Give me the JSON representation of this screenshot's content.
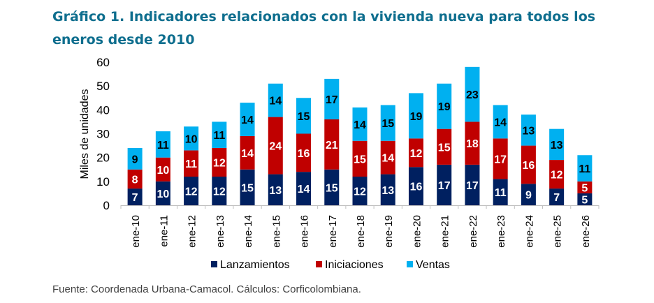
{
  "title": "Gráfico 1. Indicadores relacionados con la vivienda nueva para todos los eneros desde 2010",
  "source": "Fuente: Coordenada Urbana-Camacol. Cálculos: Corficolombiana.",
  "chart_data": {
    "type": "bar",
    "stacked": true,
    "title": "Gráfico 1. Indicadores relacionados con la vivienda nueva para todos los eneros desde 2010",
    "xlabel": "",
    "ylabel": "Miles de unidades",
    "ylim": [
      0,
      60
    ],
    "yticks": [
      0,
      10,
      20,
      30,
      40,
      50,
      60
    ],
    "grid": false,
    "legend": "bottom",
    "categories": [
      "ene-10",
      "ene-11",
      "ene-12",
      "ene-13",
      "ene-14",
      "ene-15",
      "ene-16",
      "ene-17",
      "ene-18",
      "ene-19",
      "ene-20",
      "ene-21",
      "ene-22",
      "ene-23",
      "ene-24",
      "ene-25",
      "ene-26"
    ],
    "series": [
      {
        "name": "Lanzamientos",
        "color": "#002060",
        "values": [
          7,
          10,
          12,
          12,
          15,
          13,
          14,
          15,
          12,
          13,
          16,
          17,
          17,
          11,
          9,
          7,
          5
        ]
      },
      {
        "name": "Iniciaciones",
        "color": "#c00000",
        "values": [
          8,
          10,
          11,
          12,
          14,
          24,
          16,
          21,
          15,
          14,
          12,
          15,
          18,
          17,
          16,
          12,
          5
        ]
      },
      {
        "name": "Ventas",
        "color": "#00b0f0",
        "values": [
          9,
          11,
          10,
          11,
          14,
          14,
          15,
          17,
          14,
          15,
          19,
          19,
          23,
          14,
          13,
          13,
          11
        ]
      }
    ]
  }
}
